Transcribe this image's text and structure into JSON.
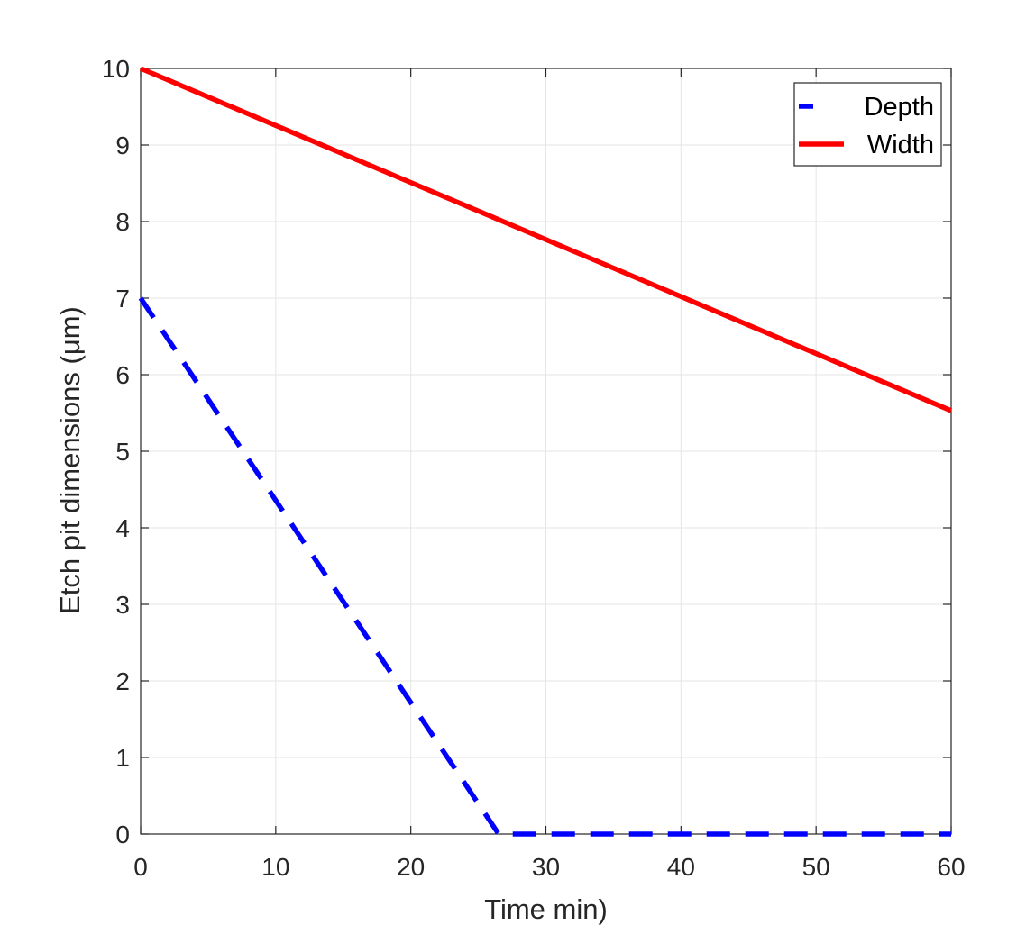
{
  "chart_data": {
    "type": "line",
    "xlabel": "Time min)",
    "ylabel": "Etch pit dimensions (μm)",
    "xlim": [
      0,
      60
    ],
    "ylim": [
      0,
      10
    ],
    "xticks": [
      0,
      10,
      20,
      30,
      40,
      50,
      60
    ],
    "yticks": [
      0,
      1,
      2,
      3,
      4,
      5,
      6,
      7,
      8,
      9,
      10
    ],
    "grid": true,
    "legend_position": "top-right",
    "series": [
      {
        "name": "Depth",
        "color": "#0000ff",
        "line_style": "dashed",
        "x": [
          0,
          26.5,
          27,
          60
        ],
        "y": [
          7,
          0,
          0,
          0
        ]
      },
      {
        "name": "Width",
        "color": "#ff0000",
        "line_style": "solid",
        "x": [
          0,
          60
        ],
        "y": [
          10,
          5.53
        ]
      }
    ]
  }
}
